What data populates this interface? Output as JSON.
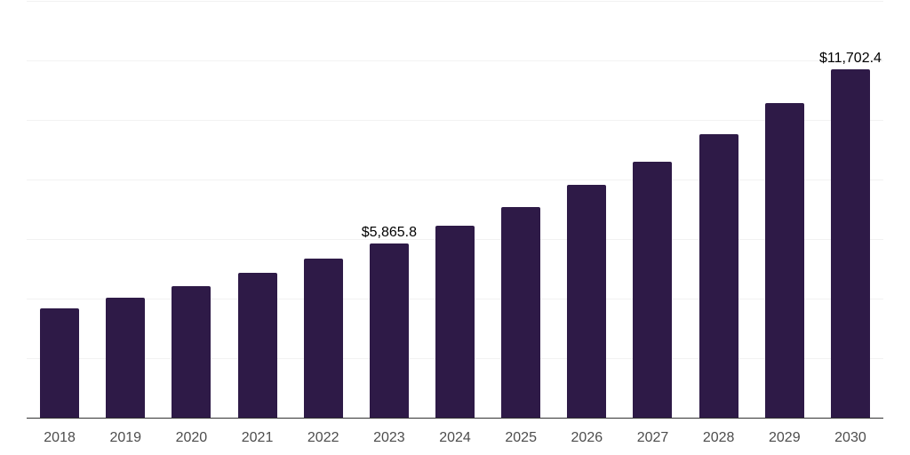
{
  "chart_data": {
    "type": "bar",
    "title": "",
    "xlabel": "",
    "ylabel": "",
    "categories": [
      "2018",
      "2019",
      "2020",
      "2021",
      "2022",
      "2023",
      "2024",
      "2025",
      "2026",
      "2027",
      "2028",
      "2029",
      "2030"
    ],
    "values": [
      3670,
      4030,
      4430,
      4870,
      5340,
      5865.8,
      6440,
      7090,
      7830,
      8610,
      9530,
      10570,
      11702.4
    ],
    "data_labels": [
      {
        "index": 5,
        "text": "$5,865.8"
      },
      {
        "index": 12,
        "text": "$11,702.4"
      }
    ],
    "ylim": [
      0,
      14000
    ],
    "gridline_step": 2000,
    "grid": "horizontal",
    "y_axis_labels": "none",
    "legend": "none",
    "colors": {
      "bar": "#2E1A47",
      "axis_line": "#333333",
      "gridline": "#F2F2F2",
      "tick_label": "#4D4D4D",
      "data_label": "#000000",
      "background": "#FFFFFF"
    }
  }
}
